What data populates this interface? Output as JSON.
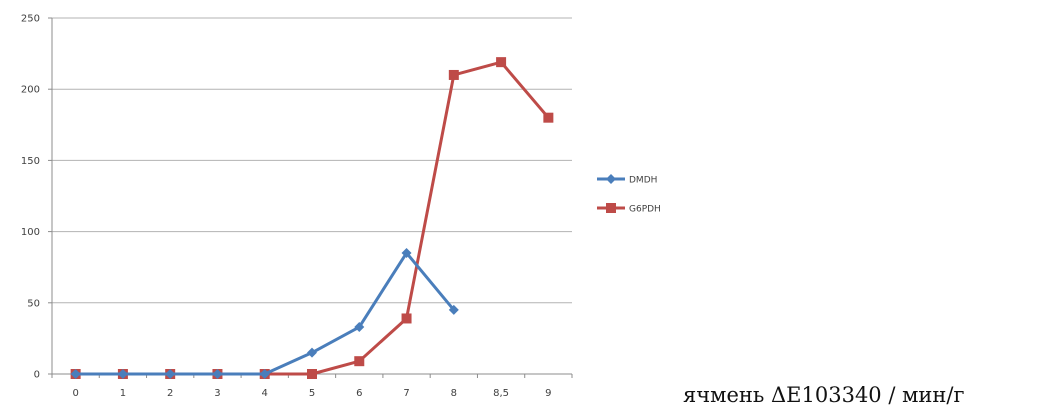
{
  "chart_data": {
    "type": "line",
    "categories": [
      "0",
      "1",
      "2",
      "3",
      "4",
      "5",
      "6",
      "7",
      "8",
      "8,5",
      "9"
    ],
    "series": [
      {
        "name": "DMDH",
        "color": "#4a7ebb",
        "marker": "diamond",
        "values": [
          0,
          0,
          0,
          0,
          0,
          15,
          33,
          85,
          45,
          null,
          null
        ]
      },
      {
        "name": "G6PDH",
        "color": "#be4b48",
        "marker": "square",
        "values": [
          0,
          0,
          0,
          0,
          0,
          0,
          9,
          39,
          210,
          219,
          180
        ]
      }
    ],
    "yticks": [
      "0",
      "50",
      "100",
      "150",
      "200",
      "250"
    ],
    "ylim": [
      0,
      250
    ],
    "grid": true,
    "legend_position": "right"
  },
  "caption": "ячмень ΔE103340 / мин/г"
}
